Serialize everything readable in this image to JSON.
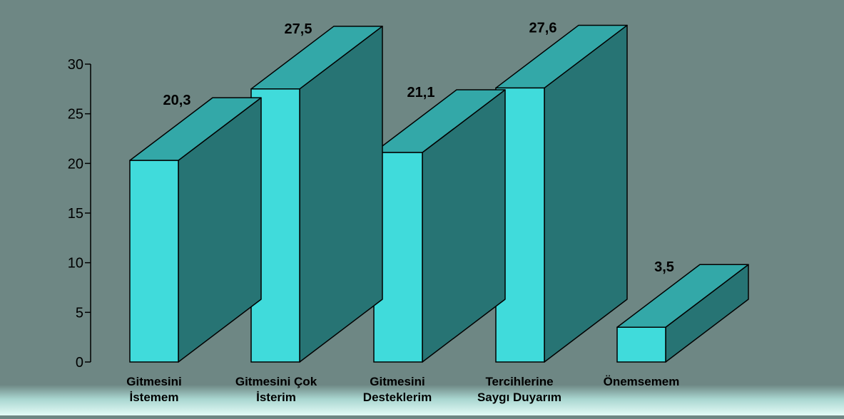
{
  "chart_data": {
    "type": "bar",
    "categories": [
      [
        "Gitmesini",
        "İstemem"
      ],
      [
        "Gitmesini Çok",
        "İsterim"
      ],
      [
        "Gitmesini",
        "Desteklerim"
      ],
      [
        "Tercihlerine",
        "Saygı Duyarım"
      ],
      [
        "Önemsemem"
      ]
    ],
    "values": [
      20.3,
      27.5,
      21.1,
      27.6,
      3.5
    ],
    "value_labels": [
      "20,3",
      "27,5",
      "21,1",
      "27,6",
      "3,5"
    ],
    "ylim": [
      0,
      30
    ],
    "yticks": [
      0,
      5,
      10,
      15,
      20,
      25,
      30
    ],
    "title": "",
    "xlabel": "",
    "ylabel": "",
    "grid": false,
    "style": "3d-column",
    "colors": {
      "front": "#40dbdb",
      "top": "#33a8a8",
      "side": "#277474",
      "stroke": "#000000"
    }
  }
}
